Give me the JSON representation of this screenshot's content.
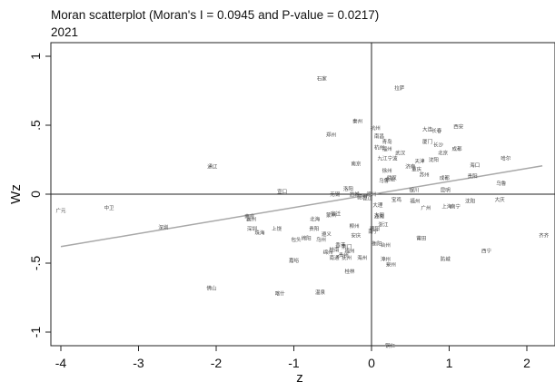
{
  "chart_data": {
    "type": "scatter",
    "title": "Moran scatterplot (Moran's I = 0.0945 and P-value = 0.0217)",
    "subtitle": "2021",
    "xlabel": "z",
    "ylabel": "Wz",
    "xlim": [
      -4.2,
      2.3
    ],
    "ylim": [
      -1.1,
      1.05
    ],
    "x_ticks": [
      -4,
      -3,
      -2,
      -1,
      0,
      1,
      2
    ],
    "y_ticks": [
      1,
      0.5,
      0,
      -0.5,
      -1
    ],
    "x_tick_labels": [
      "-4",
      "-3",
      "-2",
      "-1",
      "0",
      "1",
      "2"
    ],
    "y_tick_labels": [
      "1",
      ".5",
      "0",
      "-.5",
      "-1"
    ],
    "reference_lines": {
      "x": 0,
      "y": 0
    },
    "fit_line": {
      "slope": 0.0945,
      "intercept": -0.0022
    },
    "colors": {
      "fit_line": "#a8a8a8",
      "axes": "#222222",
      "labels": "#444444"
    },
    "points": [
      {
        "label": "广元",
        "x": -4.0,
        "y": -0.12
      },
      {
        "label": "中卫",
        "x": -3.38,
        "y": -0.1
      },
      {
        "label": "深圳",
        "x": -2.68,
        "y": -0.24
      },
      {
        "label": "通辽",
        "x": -2.05,
        "y": 0.2
      },
      {
        "label": "佛山",
        "x": -2.06,
        "y": -0.68
      },
      {
        "label": "南京",
        "x": -1.57,
        "y": -0.16
      },
      {
        "label": "襄州",
        "x": -1.55,
        "y": -0.18
      },
      {
        "label": "深圳",
        "x": -1.54,
        "y": -0.25
      },
      {
        "label": "珠海",
        "x": -1.44,
        "y": -0.28
      },
      {
        "label": "上饶",
        "x": -1.22,
        "y": -0.25
      },
      {
        "label": "喀什",
        "x": -1.18,
        "y": -0.72
      },
      {
        "label": "宣口",
        "x": -1.15,
        "y": 0.02
      },
      {
        "label": "包头",
        "x": -0.97,
        "y": -0.33
      },
      {
        "label": "嘉峪",
        "x": -1.0,
        "y": -0.48
      },
      {
        "label": "温泉",
        "x": -0.66,
        "y": -0.71
      },
      {
        "label": "北海",
        "x": -0.73,
        "y": -0.18
      },
      {
        "label": "贵阳",
        "x": -0.74,
        "y": -0.25
      },
      {
        "label": "绵阳",
        "x": -0.84,
        "y": -0.32
      },
      {
        "label": "遵义",
        "x": -0.58,
        "y": -0.29
      },
      {
        "label": "乌州",
        "x": -0.65,
        "y": -0.33
      },
      {
        "label": "桂南",
        "x": -0.48,
        "y": -0.4
      },
      {
        "label": "南通",
        "x": -0.48,
        "y": -0.46
      },
      {
        "label": "绵州",
        "x": -0.56,
        "y": -0.42
      },
      {
        "label": "桂林",
        "x": -0.28,
        "y": -0.56
      },
      {
        "label": "贵州",
        "x": -0.36,
        "y": -0.44
      },
      {
        "label": "抚州",
        "x": -0.32,
        "y": -0.46
      },
      {
        "label": "海州",
        "x": -0.12,
        "y": -0.46
      },
      {
        "label": "香港",
        "x": -0.4,
        "y": -0.37
      },
      {
        "label": "荆门",
        "x": -0.32,
        "y": -0.38
      },
      {
        "label": "福州",
        "x": -0.28,
        "y": -0.41
      },
      {
        "label": "安庆",
        "x": -0.2,
        "y": -0.3
      },
      {
        "label": "柳州",
        "x": -0.22,
        "y": -0.23
      },
      {
        "label": "蒙州",
        "x": -0.52,
        "y": -0.15
      },
      {
        "label": "宿迁",
        "x": -0.46,
        "y": -0.14
      },
      {
        "label": "石家",
        "x": -0.64,
        "y": 0.84
      },
      {
        "label": "郑州",
        "x": -0.52,
        "y": 0.43
      },
      {
        "label": "秦州",
        "x": -0.18,
        "y": 0.53
      },
      {
        "label": "南京",
        "x": -0.2,
        "y": 0.22
      },
      {
        "label": "洛阳",
        "x": -0.3,
        "y": 0.04
      },
      {
        "label": "盐城",
        "x": -0.22,
        "y": 0.0
      },
      {
        "label": "无锡",
        "x": -0.47,
        "y": 0.0
      },
      {
        "label": "韶州",
        "x": -0.12,
        "y": -0.02
      },
      {
        "label": "昆山",
        "x": -0.05,
        "y": -0.03
      },
      {
        "label": "德州",
        "x": 0.0,
        "y": 0.0
      },
      {
        "label": "德阳",
        "x": 0.04,
        "y": -0.25
      },
      {
        "label": "南宁",
        "x": 0.02,
        "y": -0.27
      },
      {
        "label": "衡阳",
        "x": 0.07,
        "y": -0.36
      },
      {
        "label": "台州",
        "x": 0.18,
        "y": -0.37
      },
      {
        "label": "浙江",
        "x": 0.15,
        "y": -0.22
      },
      {
        "label": "湖南",
        "x": 0.1,
        "y": -0.16
      },
      {
        "label": "漳州",
        "x": 0.18,
        "y": -0.47
      },
      {
        "label": "泉州",
        "x": 0.25,
        "y": -0.51
      },
      {
        "label": "杭州",
        "x": 0.05,
        "y": 0.48
      },
      {
        "label": "南昌",
        "x": 0.1,
        "y": 0.42
      },
      {
        "label": "杭州",
        "x": 0.1,
        "y": 0.34
      },
      {
        "label": "福州",
        "x": 0.2,
        "y": 0.33
      },
      {
        "label": "青岛",
        "x": 0.2,
        "y": 0.38
      },
      {
        "label": "武汉",
        "x": 0.37,
        "y": 0.3
      },
      {
        "label": "宁波",
        "x": 0.27,
        "y": 0.26
      },
      {
        "label": "九江",
        "x": 0.14,
        "y": 0.26
      },
      {
        "label": "徐州",
        "x": 0.2,
        "y": 0.17
      },
      {
        "label": "武汉",
        "x": 0.26,
        "y": 0.12
      },
      {
        "label": "乌鲁",
        "x": 0.16,
        "y": 0.1
      },
      {
        "label": "合肥",
        "x": 0.24,
        "y": 0.11
      },
      {
        "label": "拉萨",
        "x": 0.36,
        "y": 0.77
      },
      {
        "label": "大连",
        "x": 0.72,
        "y": 0.47
      },
      {
        "label": "长春",
        "x": 0.84,
        "y": 0.46
      },
      {
        "label": "西安",
        "x": 1.12,
        "y": 0.49
      },
      {
        "label": "厦门",
        "x": 0.72,
        "y": 0.38
      },
      {
        "label": "长沙",
        "x": 0.86,
        "y": 0.36
      },
      {
        "label": "成都",
        "x": 1.1,
        "y": 0.33
      },
      {
        "label": "北京",
        "x": 0.92,
        "y": 0.3
      },
      {
        "label": "天津",
        "x": 0.62,
        "y": 0.24
      },
      {
        "label": "沈阳",
        "x": 0.8,
        "y": 0.25
      },
      {
        "label": "济南",
        "x": 0.5,
        "y": 0.2
      },
      {
        "label": "重庆",
        "x": 0.58,
        "y": 0.18
      },
      {
        "label": "苏州",
        "x": 0.68,
        "y": 0.14
      },
      {
        "label": "成都",
        "x": 0.94,
        "y": 0.12
      },
      {
        "label": "昆明",
        "x": 0.95,
        "y": 0.03
      },
      {
        "label": "银川",
        "x": 0.55,
        "y": 0.03
      },
      {
        "label": "海口",
        "x": 1.33,
        "y": 0.21
      },
      {
        "label": "贵阳",
        "x": 1.3,
        "y": 0.13
      },
      {
        "label": "哈尔",
        "x": 1.73,
        "y": 0.26
      },
      {
        "label": "乌鲁",
        "x": 1.67,
        "y": 0.08
      },
      {
        "label": "沈阳",
        "x": 1.27,
        "y": -0.05
      },
      {
        "label": "上海",
        "x": 0.97,
        "y": -0.09
      },
      {
        "label": "南宁",
        "x": 1.08,
        "y": -0.09
      },
      {
        "label": "广州",
        "x": 0.7,
        "y": -0.1
      },
      {
        "label": "宝鸡",
        "x": 0.32,
        "y": -0.04
      },
      {
        "label": "福州",
        "x": 0.56,
        "y": -0.05
      },
      {
        "label": "大理",
        "x": 0.08,
        "y": -0.08
      },
      {
        "label": "大同",
        "x": 0.1,
        "y": -0.15
      },
      {
        "label": "大庆",
        "x": 1.65,
        "y": -0.04
      },
      {
        "label": "防城",
        "x": 0.95,
        "y": -0.47
      },
      {
        "label": "西宁",
        "x": 1.48,
        "y": -0.41
      },
      {
        "label": "齐齐",
        "x": 2.22,
        "y": -0.3
      },
      {
        "label": "莆田",
        "x": 0.64,
        "y": -0.32
      },
      {
        "label": "铜仁",
        "x": 0.24,
        "y": -1.1
      }
    ]
  }
}
